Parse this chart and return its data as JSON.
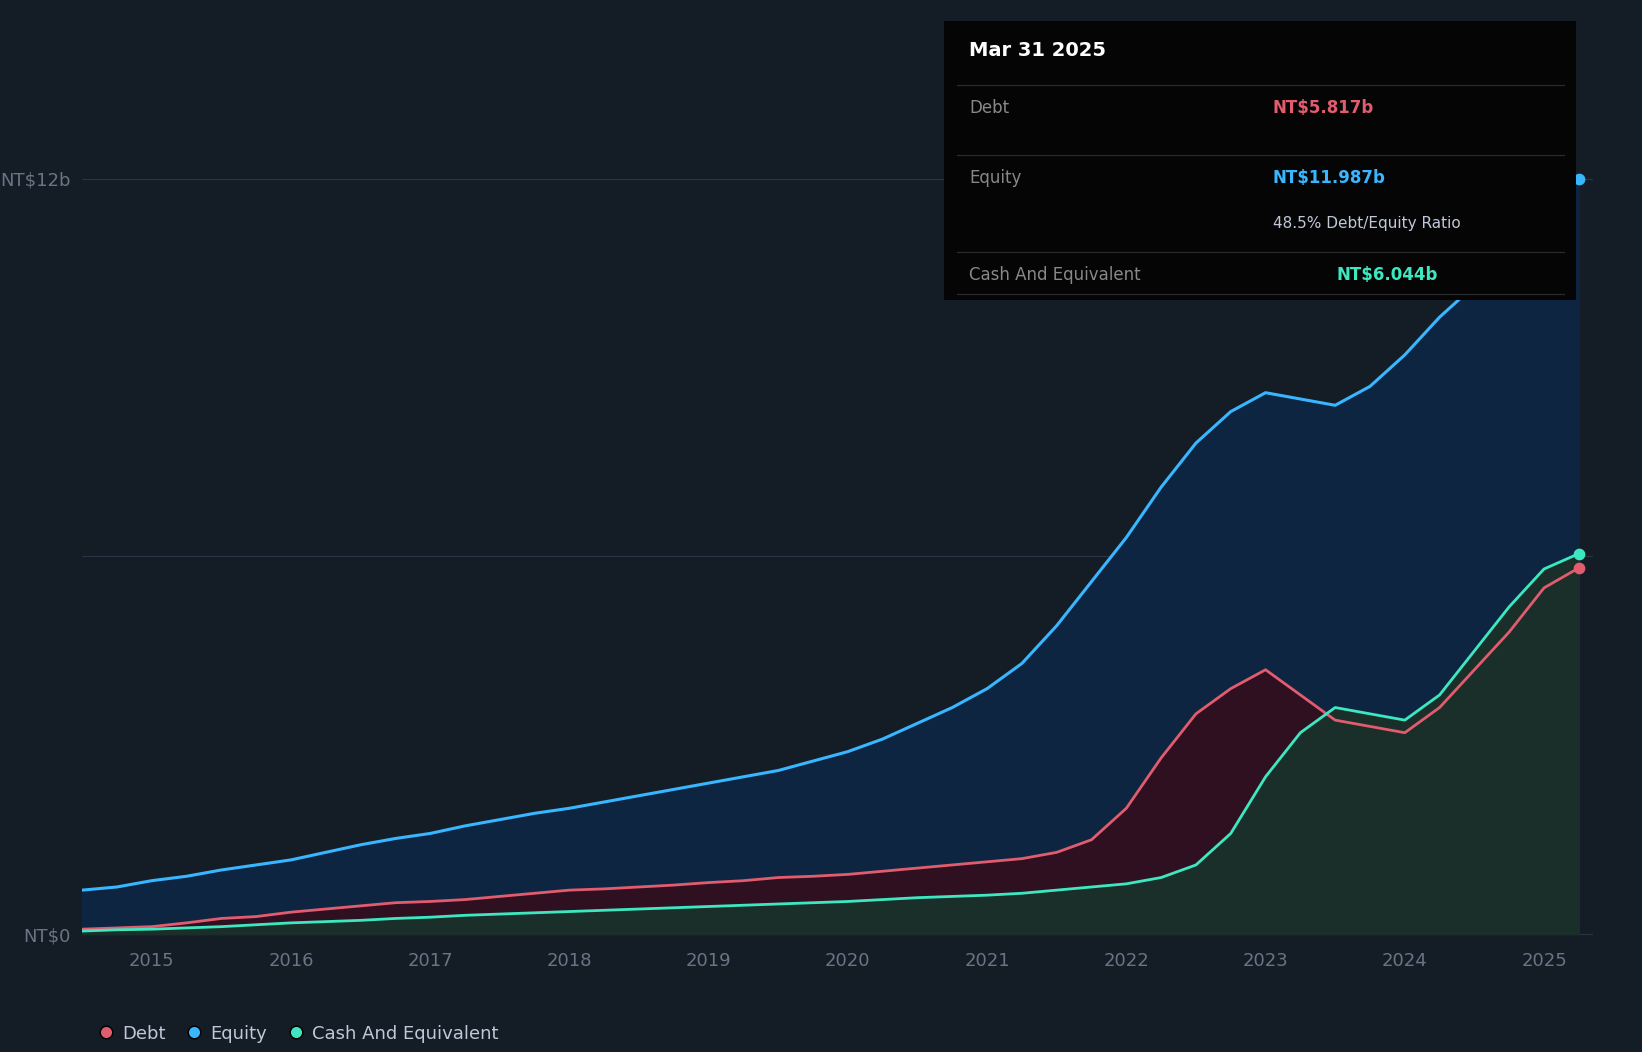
{
  "bg_color": "#141c26",
  "plot_bg_color": "#141c26",
  "tooltip_title": "Mar 31 2025",
  "tooltip_debt_label": "Debt",
  "tooltip_debt": "NT$5.817b",
  "tooltip_equity_label": "Equity",
  "tooltip_equity": "NT$11.987b",
  "tooltip_ratio": "48.5% Debt/Equity Ratio",
  "tooltip_cash_label": "Cash And Equivalent",
  "tooltip_cash": "NT$6.044b",
  "equity_color": "#38b6ff",
  "debt_color": "#e05c6e",
  "cash_color": "#3de8c0",
  "grid_color": "#2a3345",
  "tick_color": "#6a7485",
  "years": [
    2015,
    2016,
    2017,
    2018,
    2019,
    2020,
    2021,
    2022,
    2023,
    2024,
    2025
  ],
  "equity_x": [
    2014.5,
    2014.75,
    2015.0,
    2015.25,
    2015.5,
    2015.75,
    2016.0,
    2016.25,
    2016.5,
    2016.75,
    2017.0,
    2017.25,
    2017.5,
    2017.75,
    2018.0,
    2018.25,
    2018.5,
    2018.75,
    2019.0,
    2019.25,
    2019.5,
    2019.75,
    2020.0,
    2020.25,
    2020.5,
    2020.75,
    2021.0,
    2021.25,
    2021.5,
    2021.75,
    2022.0,
    2022.25,
    2022.5,
    2022.75,
    2023.0,
    2023.25,
    2023.5,
    2023.75,
    2024.0,
    2024.25,
    2024.5,
    2024.75,
    2025.0,
    2025.25
  ],
  "equity_y": [
    0.7,
    0.75,
    0.85,
    0.92,
    1.02,
    1.1,
    1.18,
    1.3,
    1.42,
    1.52,
    1.6,
    1.72,
    1.82,
    1.92,
    2.0,
    2.1,
    2.2,
    2.3,
    2.4,
    2.5,
    2.6,
    2.75,
    2.9,
    3.1,
    3.35,
    3.6,
    3.9,
    4.3,
    4.9,
    5.6,
    6.3,
    7.1,
    7.8,
    8.3,
    8.6,
    8.5,
    8.4,
    8.7,
    9.2,
    9.8,
    10.3,
    10.9,
    11.5,
    11.987
  ],
  "debt_x": [
    2014.5,
    2014.75,
    2015.0,
    2015.25,
    2015.5,
    2015.75,
    2016.0,
    2016.25,
    2016.5,
    2016.75,
    2017.0,
    2017.25,
    2017.5,
    2017.75,
    2018.0,
    2018.25,
    2018.5,
    2018.75,
    2019.0,
    2019.25,
    2019.5,
    2019.75,
    2020.0,
    2020.25,
    2020.5,
    2020.75,
    2021.0,
    2021.25,
    2021.5,
    2021.75,
    2022.0,
    2022.25,
    2022.5,
    2022.75,
    2023.0,
    2023.25,
    2023.5,
    2023.75,
    2024.0,
    2024.25,
    2024.5,
    2024.75,
    2025.0,
    2025.25
  ],
  "debt_y": [
    0.08,
    0.1,
    0.12,
    0.18,
    0.25,
    0.28,
    0.35,
    0.4,
    0.45,
    0.5,
    0.52,
    0.55,
    0.6,
    0.65,
    0.7,
    0.72,
    0.75,
    0.78,
    0.82,
    0.85,
    0.9,
    0.92,
    0.95,
    1.0,
    1.05,
    1.1,
    1.15,
    1.2,
    1.3,
    1.5,
    2.0,
    2.8,
    3.5,
    3.9,
    4.2,
    3.8,
    3.4,
    3.3,
    3.2,
    3.6,
    4.2,
    4.8,
    5.5,
    5.817
  ],
  "cash_x": [
    2014.5,
    2014.75,
    2015.0,
    2015.25,
    2015.5,
    2015.75,
    2016.0,
    2016.25,
    2016.5,
    2016.75,
    2017.0,
    2017.25,
    2017.5,
    2017.75,
    2018.0,
    2018.25,
    2018.5,
    2018.75,
    2019.0,
    2019.25,
    2019.5,
    2019.75,
    2020.0,
    2020.25,
    2020.5,
    2020.75,
    2021.0,
    2021.25,
    2021.5,
    2021.75,
    2022.0,
    2022.25,
    2022.5,
    2022.75,
    2023.0,
    2023.25,
    2023.5,
    2023.75,
    2024.0,
    2024.25,
    2024.5,
    2024.75,
    2025.0,
    2025.25
  ],
  "cash_y": [
    0.05,
    0.07,
    0.08,
    0.1,
    0.12,
    0.15,
    0.18,
    0.2,
    0.22,
    0.25,
    0.27,
    0.3,
    0.32,
    0.34,
    0.36,
    0.38,
    0.4,
    0.42,
    0.44,
    0.46,
    0.48,
    0.5,
    0.52,
    0.55,
    0.58,
    0.6,
    0.62,
    0.65,
    0.7,
    0.75,
    0.8,
    0.9,
    1.1,
    1.6,
    2.5,
    3.2,
    3.6,
    3.5,
    3.4,
    3.8,
    4.5,
    5.2,
    5.8,
    6.044
  ],
  "xlim": [
    2014.5,
    2025.35
  ],
  "ylim": [
    -0.2,
    13.5
  ],
  "ytick_positions": [
    0,
    6,
    12
  ],
  "ytick_labels": [
    "NT$0",
    "",
    "NT$12b"
  ],
  "legend_labels": [
    "Debt",
    "Equity",
    "Cash And Equivalent"
  ],
  "tooltip_box_color": "#050505"
}
